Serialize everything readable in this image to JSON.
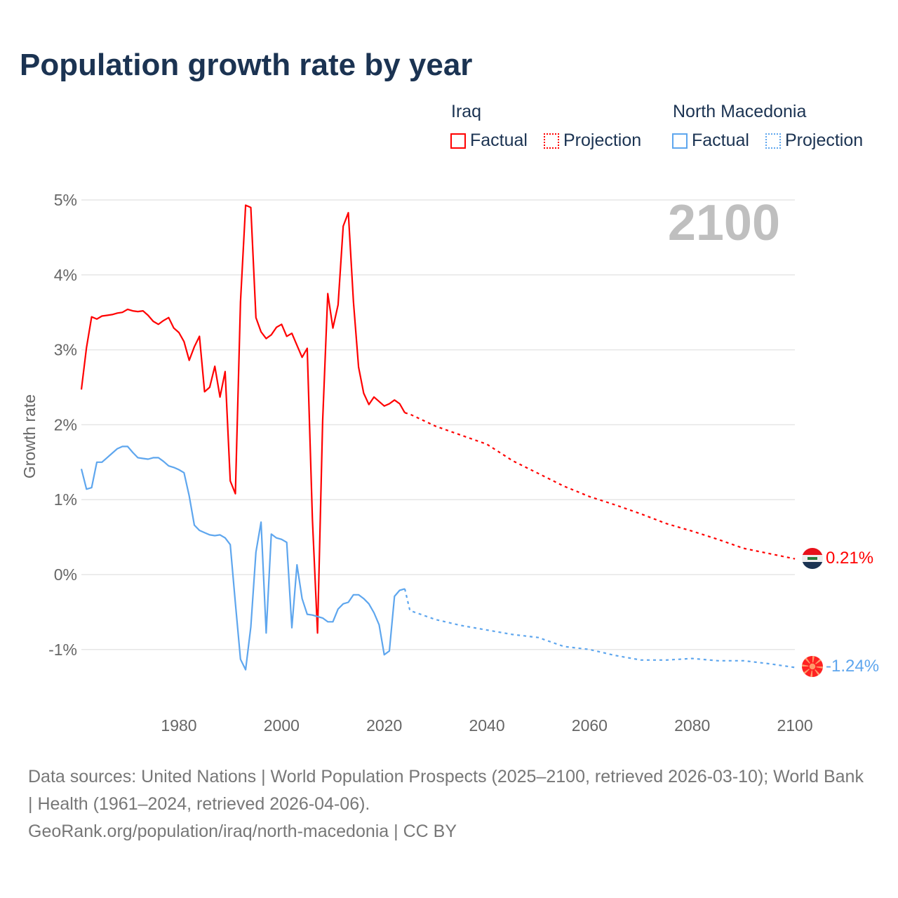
{
  "title": "Population growth rate by year",
  "legend": {
    "groups": [
      {
        "name": "Iraq",
        "factual": "Factual",
        "projection": "Projection",
        "color": "#ff0000"
      },
      {
        "name": "North Macedonia",
        "factual": "Factual",
        "projection": "Projection",
        "color": "#5ea6ee"
      }
    ]
  },
  "year_label": "2100",
  "sources": {
    "line1": "Data sources: United Nations | World Population Prospects (2025–2100, retrieved 2026-03-10); World Bank | Health (1961–2024, retrieved 2026-04-06).",
    "line2": "GeoRank.org/population/iraq/north-macedonia | CC BY"
  },
  "chart_data": {
    "type": "line",
    "title": "Population growth rate by year",
    "xlabel": "",
    "ylabel": "Growth rate",
    "xlim": [
      1961,
      2100
    ],
    "ylim": [
      -1.5,
      5
    ],
    "grid": true,
    "x_ticks": [
      "1980",
      "2000",
      "2020",
      "2040",
      "2060",
      "2080",
      "2100"
    ],
    "y_ticks": [
      "-1%",
      "0%",
      "1%",
      "2%",
      "3%",
      "4%",
      "5%"
    ],
    "end_labels": {
      "Iraq": "0.21%",
      "North Macedonia": "-1.24%"
    },
    "series": [
      {
        "name": "Iraq Factual",
        "color": "#ff0000",
        "dashed": false,
        "x": [
          1961,
          1962,
          1963,
          1964,
          1965,
          1966,
          1967,
          1968,
          1969,
          1970,
          1971,
          1972,
          1973,
          1974,
          1975,
          1976,
          1977,
          1978,
          1979,
          1980,
          1981,
          1982,
          1983,
          1984,
          1985,
          1986,
          1987,
          1988,
          1989,
          1990,
          1991,
          1992,
          1993,
          1994,
          1995,
          1996,
          1997,
          1998,
          1999,
          2000,
          2001,
          2002,
          2003,
          2004,
          2005,
          2006,
          2007,
          2008,
          2009,
          2010,
          2011,
          2012,
          2013,
          2014,
          2015,
          2016,
          2017,
          2018,
          2019,
          2020,
          2021,
          2022,
          2023,
          2024
        ],
        "y": [
          2.47,
          3.03,
          3.44,
          3.41,
          3.45,
          3.46,
          3.47,
          3.49,
          3.5,
          3.54,
          3.52,
          3.51,
          3.52,
          3.46,
          3.38,
          3.34,
          3.39,
          3.43,
          3.29,
          3.23,
          3.11,
          2.86,
          3.04,
          3.18,
          2.44,
          2.5,
          2.78,
          2.37,
          2.71,
          1.25,
          1.08,
          3.64,
          4.93,
          4.9,
          3.43,
          3.24,
          3.15,
          3.2,
          3.3,
          3.34,
          3.18,
          3.22,
          3.06,
          2.9,
          3.02,
          0.74,
          -0.78,
          2.05,
          3.75,
          3.29,
          3.6,
          4.65,
          4.83,
          3.64,
          2.77,
          2.42,
          2.27,
          2.37,
          2.31,
          2.25,
          2.28,
          2.33,
          2.28,
          2.16
        ]
      },
      {
        "name": "Iraq Projection",
        "color": "#ff0000",
        "dashed": true,
        "x": [
          2024,
          2025,
          2030,
          2035,
          2040,
          2045,
          2050,
          2055,
          2060,
          2065,
          2070,
          2075,
          2080,
          2085,
          2090,
          2095,
          2100
        ],
        "y": [
          2.16,
          2.14,
          1.98,
          1.86,
          1.74,
          1.52,
          1.35,
          1.18,
          1.04,
          0.93,
          0.81,
          0.68,
          0.58,
          0.47,
          0.35,
          0.28,
          0.21
        ]
      },
      {
        "name": "North Macedonia Factual",
        "color": "#5ea6ee",
        "dashed": false,
        "x": [
          1961,
          1962,
          1963,
          1964,
          1965,
          1966,
          1967,
          1968,
          1969,
          1970,
          1971,
          1972,
          1973,
          1974,
          1975,
          1976,
          1977,
          1978,
          1979,
          1980,
          1981,
          1982,
          1983,
          1984,
          1985,
          1986,
          1987,
          1988,
          1989,
          1990,
          1991,
          1992,
          1993,
          1994,
          1995,
          1996,
          1997,
          1998,
          1999,
          2000,
          2001,
          2002,
          2003,
          2004,
          2005,
          2006,
          2007,
          2008,
          2009,
          2010,
          2011,
          2012,
          2013,
          2014,
          2015,
          2016,
          2017,
          2018,
          2019,
          2020,
          2021,
          2022,
          2023,
          2024
        ],
        "y": [
          1.41,
          1.14,
          1.16,
          1.5,
          1.5,
          1.56,
          1.62,
          1.68,
          1.71,
          1.71,
          1.63,
          1.56,
          1.55,
          1.54,
          1.56,
          1.56,
          1.51,
          1.45,
          1.43,
          1.4,
          1.36,
          1.05,
          0.66,
          0.59,
          0.56,
          0.53,
          0.52,
          0.53,
          0.49,
          0.4,
          -0.38,
          -1.13,
          -1.27,
          -0.7,
          0.3,
          0.7,
          -0.78,
          0.54,
          0.49,
          0.47,
          0.43,
          -0.71,
          0.13,
          -0.32,
          -0.53,
          -0.54,
          -0.56,
          -0.58,
          -0.63,
          -0.63,
          -0.46,
          -0.39,
          -0.37,
          -0.27,
          -0.27,
          -0.32,
          -0.39,
          -0.51,
          -0.67,
          -1.07,
          -1.02,
          -0.29,
          -0.21,
          -0.19
        ]
      },
      {
        "name": "North Macedonia Projection",
        "color": "#5ea6ee",
        "dashed": true,
        "x": [
          2024,
          2025,
          2030,
          2035,
          2040,
          2045,
          2050,
          2055,
          2060,
          2065,
          2070,
          2075,
          2080,
          2085,
          2090,
          2095,
          2100
        ],
        "y": [
          -0.19,
          -0.48,
          -0.6,
          -0.68,
          -0.74,
          -0.8,
          -0.84,
          -0.96,
          -1.0,
          -1.08,
          -1.14,
          -1.14,
          -1.12,
          -1.15,
          -1.15,
          -1.19,
          -1.24
        ]
      }
    ]
  }
}
